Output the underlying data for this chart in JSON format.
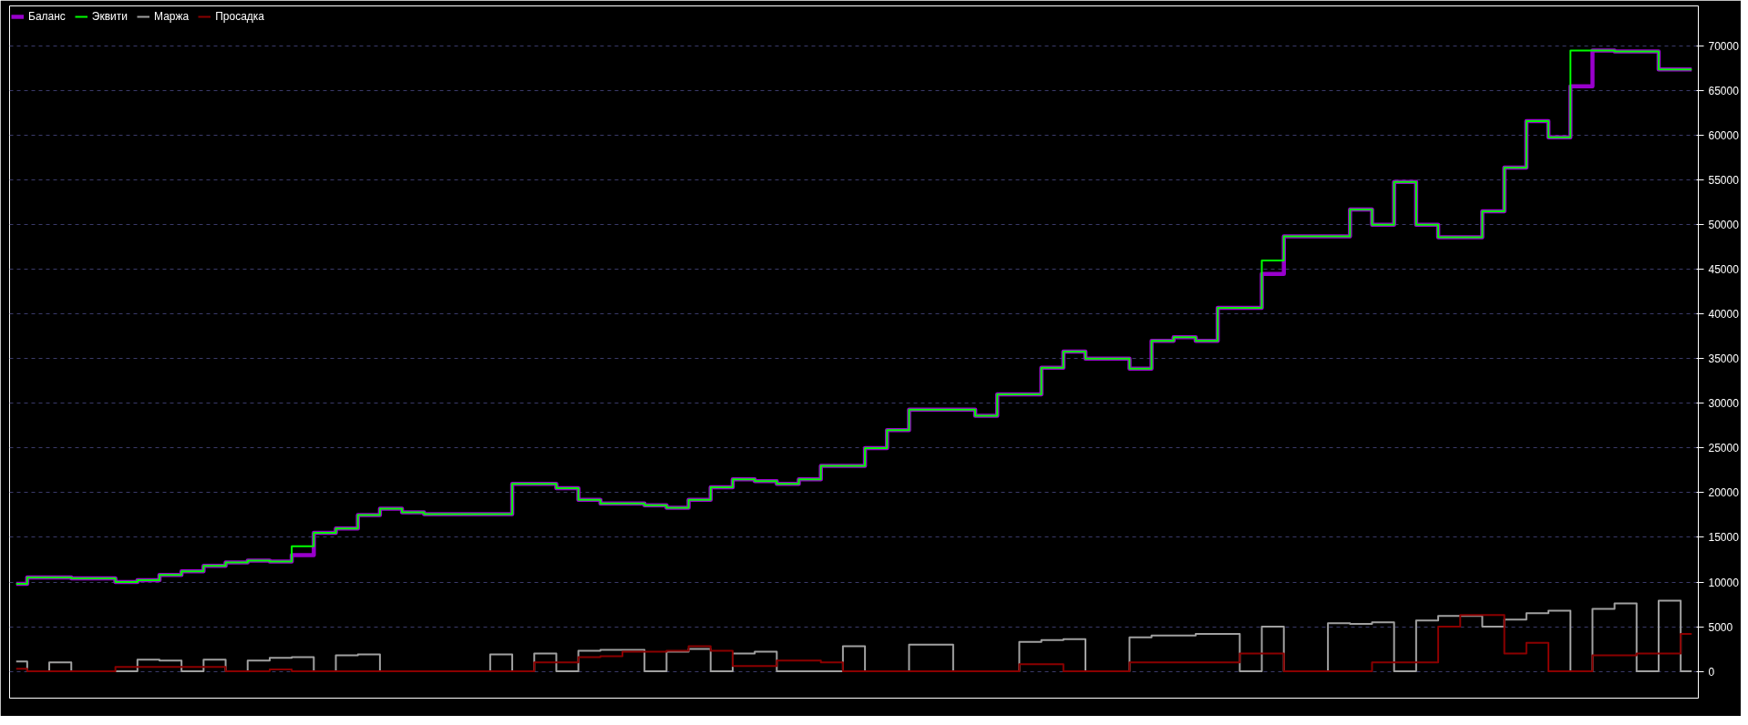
{
  "chart_data": {
    "type": "step",
    "categories": [
      null,
      null,
      null,
      null,
      null,
      null,
      null,
      null,
      null,
      null,
      null,
      null,
      null,
      null,
      null,
      null,
      null,
      null,
      null,
      null,
      null,
      null,
      null,
      null,
      null,
      null,
      null,
      null,
      null,
      null,
      null,
      null,
      null,
      null,
      null,
      null,
      null,
      null,
      null,
      null,
      null,
      null,
      null,
      null,
      null,
      null,
      null,
      null,
      null,
      null,
      null,
      null,
      null,
      null,
      null,
      null,
      null,
      null,
      null,
      null,
      null,
      null,
      null,
      null,
      null,
      null,
      null,
      null,
      null,
      null,
      null,
      null,
      null,
      null,
      null,
      null,
      null
    ],
    "series": [
      {
        "name": "Баланс",
        "color": "#9900cc",
        "values": [
          9800,
          10500,
          10500,
          10400,
          10400,
          10000,
          10200,
          10800,
          11200,
          11800,
          12200,
          12400,
          12300,
          13000,
          15500,
          16000,
          17500,
          18200,
          17800,
          17600,
          17600,
          17600,
          17600,
          21000,
          21000,
          20500,
          19200,
          18800,
          18800,
          18600,
          18300,
          19200,
          20600,
          21500,
          21300,
          21000,
          21500,
          23000,
          23000,
          25000,
          27000,
          29300,
          29300,
          29300,
          28600,
          31000,
          31000,
          34000,
          35800,
          35000,
          35000,
          33900,
          37000,
          37400,
          37000,
          40700,
          40700,
          44500,
          48700,
          48700,
          48700,
          51700,
          50000,
          54800,
          50000,
          48600,
          48600,
          51500,
          56400,
          61600,
          59800,
          65500,
          69500,
          69400,
          69400,
          67400,
          67400
        ]
      },
      {
        "name": "Эквити",
        "color": "#00ff00",
        "values": [
          9800,
          10500,
          10500,
          10400,
          10400,
          10000,
          10200,
          10800,
          11200,
          11800,
          12200,
          12400,
          12300,
          14000,
          15500,
          16000,
          17500,
          18200,
          17800,
          17600,
          17600,
          17600,
          17600,
          21000,
          21000,
          20500,
          19200,
          18800,
          18800,
          18600,
          18300,
          19200,
          20600,
          21500,
          21300,
          21000,
          21500,
          23000,
          23000,
          25000,
          27000,
          29300,
          29300,
          29300,
          28600,
          31000,
          31000,
          34000,
          35800,
          35000,
          35000,
          33900,
          37000,
          37400,
          37000,
          40700,
          40700,
          46000,
          48700,
          48700,
          48700,
          51700,
          50000,
          54800,
          50000,
          48600,
          48600,
          51500,
          56400,
          61600,
          59800,
          69500,
          69500,
          69400,
          69400,
          67400,
          67400
        ]
      },
      {
        "name": "Маржа",
        "color": "#a0a0a0",
        "values": [
          1100,
          0,
          1000,
          0,
          0,
          0,
          1300,
          1200,
          0,
          1300,
          0,
          1200,
          1500,
          1600,
          0,
          1800,
          1900,
          0,
          0,
          0,
          0,
          0,
          1900,
          0,
          2000,
          0,
          2300,
          2400,
          2400,
          0,
          2200,
          2500,
          0,
          2000,
          2200,
          0,
          0,
          0,
          2800,
          0,
          0,
          3000,
          3000,
          0,
          0,
          0,
          3300,
          3500,
          3600,
          0,
          0,
          3800,
          4000,
          4000,
          4200,
          4200,
          0,
          5000,
          0,
          0,
          5400,
          5300,
          5500,
          0,
          5700,
          6200,
          6200,
          5000,
          5800,
          6500,
          6800,
          0,
          7000,
          7600,
          0,
          7900,
          0
        ]
      },
      {
        "name": "Просадка",
        "color": "#8b0000",
        "values": [
          300,
          0,
          0,
          0,
          0,
          500,
          500,
          500,
          500,
          500,
          0,
          0,
          200,
          0,
          0,
          0,
          0,
          0,
          0,
          0,
          0,
          0,
          0,
          0,
          1000,
          1000,
          1600,
          1700,
          2200,
          2200,
          2300,
          2800,
          2300,
          600,
          600,
          1200,
          1200,
          1000,
          0,
          0,
          0,
          0,
          0,
          0,
          0,
          0,
          800,
          800,
          0,
          0,
          0,
          1000,
          1000,
          1000,
          1000,
          1000,
          2000,
          2000,
          0,
          0,
          0,
          0,
          1000,
          1000,
          1000,
          5000,
          6300,
          6300,
          2000,
          3200,
          0,
          0,
          1800,
          1800,
          2000,
          2000,
          4200
        ]
      }
    ],
    "ylim": [
      -3000,
      74500
    ],
    "yticks": [
      0,
      5000,
      10000,
      15000,
      20000,
      25000,
      30000,
      35000,
      40000,
      45000,
      50000,
      55000,
      60000,
      65000,
      70000
    ],
    "grid": "y",
    "legend": "top left",
    "tick_labels": "y"
  }
}
